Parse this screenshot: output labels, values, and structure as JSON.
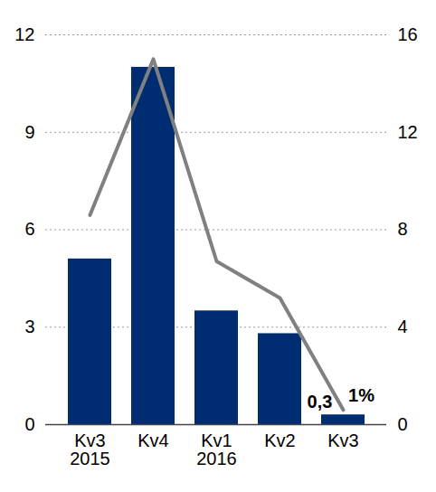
{
  "chart_data": {
    "type": "bar",
    "categories": [
      "Kv3\n2015",
      "Kv4",
      "Kv1\n2016",
      "Kv2",
      "Kv3"
    ],
    "series": [
      {
        "type": "bar",
        "color": "#002d72",
        "values": [
          5.1,
          11.0,
          3.5,
          2.8,
          0.3
        ],
        "value_labels": [
          null,
          null,
          null,
          null,
          "0,3"
        ]
      },
      {
        "type": "line",
        "axis": "y2",
        "color": "#808080",
        "values": [
          8.6,
          15.0,
          6.7,
          5.2,
          0.6
        ],
        "value_labels": [
          null,
          null,
          null,
          null,
          "1%"
        ]
      }
    ],
    "ylim": [
      0,
      12
    ],
    "yticks": [
      0,
      3,
      6,
      9,
      12
    ],
    "y2lim": [
      0,
      16
    ],
    "y2ticks": [
      0,
      4,
      8,
      12,
      16
    ],
    "grid": true
  }
}
